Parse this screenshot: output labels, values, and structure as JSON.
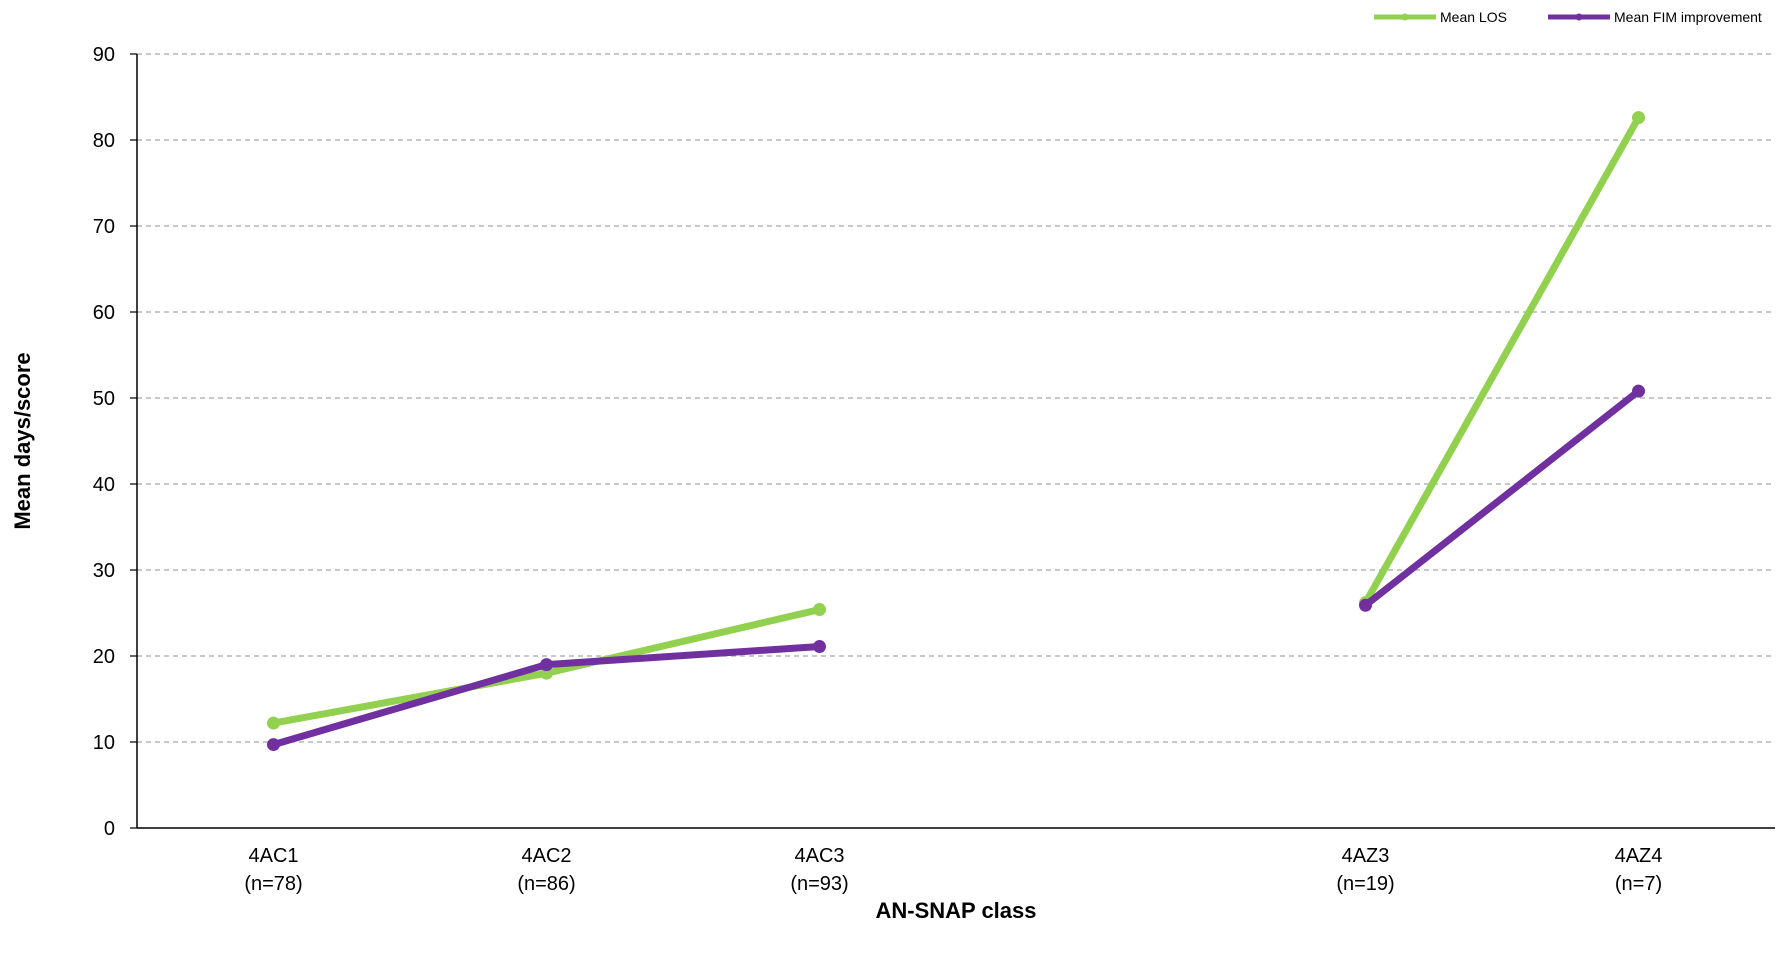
{
  "chart_data": {
    "type": "line",
    "title": "",
    "xlabel": "AN-SNAP class",
    "ylabel": "Mean days/score",
    "ylim": [
      0,
      90
    ],
    "yticks": [
      "0",
      "10",
      "20",
      "30",
      "40",
      "50",
      "60",
      "70",
      "80",
      "90"
    ],
    "categories": [
      {
        "code": "4AC1",
        "n": "(n=78)"
      },
      {
        "code": "4AC2",
        "n": "(n=86)"
      },
      {
        "code": "4AC3",
        "n": "(n=93)"
      },
      {
        "code": "",
        "n": ""
      },
      {
        "code": "4AZ3",
        "n": "(n=19)"
      },
      {
        "code": "4AZ4",
        "n": "(n=7)"
      }
    ],
    "grid": "horizontal dashed",
    "legend_position": "top-right",
    "series": [
      {
        "name": "Mean LOS",
        "color": "#92d050",
        "values": [
          12.2,
          18.0,
          25.4,
          null,
          26.2,
          82.6
        ]
      },
      {
        "name": "Mean FIM improvement",
        "color": "#7030a0",
        "values": [
          9.7,
          19.0,
          21.1,
          null,
          25.9,
          50.8
        ]
      }
    ]
  }
}
